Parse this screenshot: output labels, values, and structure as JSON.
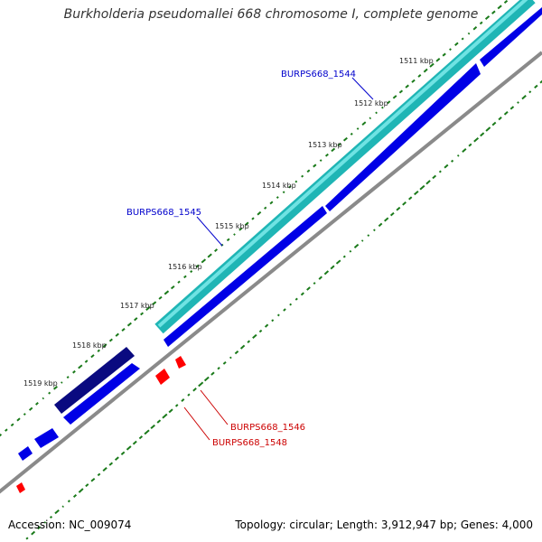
{
  "title": "Burkholderia pseudomallei 668 chromosome I, complete genome",
  "footer": {
    "accession": "Accession: NC_009074",
    "summary": "Topology: circular; Length: 3,912,947 bp; Genes: 4,000"
  },
  "colors": {
    "backbone": "#808080",
    "gene_forward": "#0000e6",
    "gene_dark": "#0a0a80",
    "feature_cyan": "#2ec9c9",
    "gene_reverse": "#ff0000",
    "gc_tick": "#1a7a1a",
    "label_forward": "#0000cc",
    "label_reverse": "#cc0000"
  },
  "ticks": [
    {
      "label": "1511 kbp"
    },
    {
      "label": "1512 kbp"
    },
    {
      "label": "1513 kbp"
    },
    {
      "label": "1514 kbp"
    },
    {
      "label": "1515 kbp"
    },
    {
      "label": "1516 kbp"
    },
    {
      "label": "1517 kbp"
    },
    {
      "label": "1518 kbp"
    },
    {
      "label": "1519 kbp"
    }
  ],
  "gene_labels": [
    {
      "text": "BURPS668_1544",
      "strand": "forward"
    },
    {
      "text": "BURPS668_1545",
      "strand": "forward"
    },
    {
      "text": "BURPS668_1546",
      "strand": "reverse"
    },
    {
      "text": "BURPS668_1548",
      "strand": "reverse"
    }
  ]
}
